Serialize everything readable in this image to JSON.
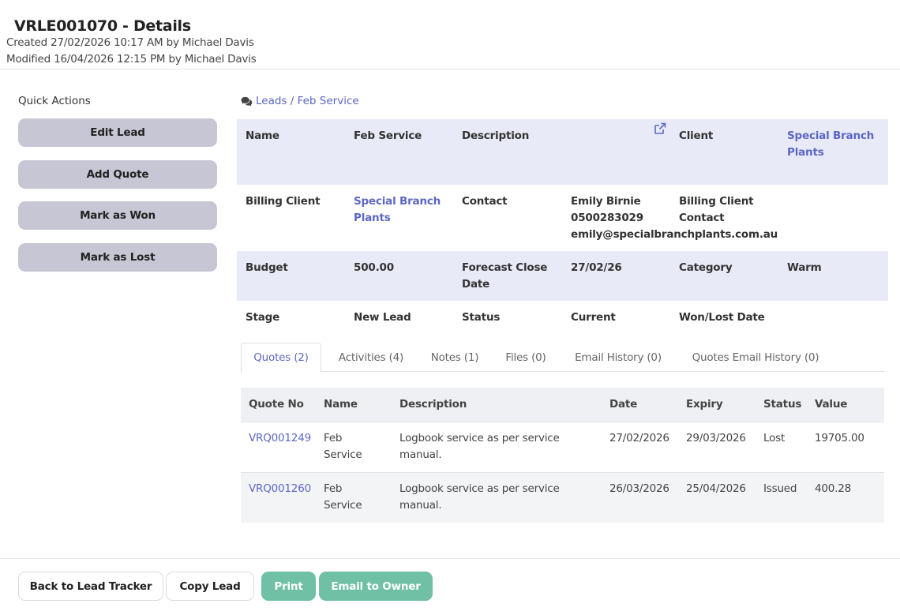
{
  "header": {
    "title": "VRLE001070 - Details",
    "created": "Created 27/02/2026 10:17 AM by Michael Davis",
    "modified": "Modified 16/04/2026 12:15 PM by Michael Davis"
  },
  "quick_actions": {
    "title": "Quick Actions",
    "buttons": [
      "Edit Lead",
      "Add Quote",
      "Mark as Won",
      "Mark as Lost"
    ]
  },
  "breadcrumb": {
    "icon": "comments-icon",
    "text": "Leads / Feb Service"
  },
  "details": {
    "name_label": "Name",
    "name_value": "Feb Service",
    "description_label": "Description",
    "client_label": "Client",
    "client_value": "Special Branch Plants",
    "billing_client_label": "Billing Client",
    "billing_client_value": "Special Branch Plants",
    "contact_label": "Contact",
    "contact_name": "Emily Birnie",
    "contact_phone": "0500283029",
    "contact_email": "emily@specialbranchplants.com.au",
    "billing_contact_label": "Billing Client Contact",
    "budget_label": "Budget",
    "budget_value": "500.00",
    "forecast_label": "Forecast Close Date",
    "forecast_value": "27/02/26",
    "category_label": "Category",
    "category_value": "Warm",
    "stage_label": "Stage",
    "stage_value": "New Lead",
    "status_label": "Status",
    "status_value": "Current",
    "wonlost_label": "Won/Lost Date"
  },
  "tabs": [
    "Quotes (2)",
    "Activities (4)",
    "Notes (1)",
    "Files (0)",
    "Email History (0)",
    "Quotes Email History (0)"
  ],
  "quotes": {
    "headers": [
      "Quote No",
      "Name",
      "Description",
      "Date",
      "Expiry",
      "Status",
      "Value"
    ],
    "rows": [
      {
        "quote_no": "VRQ001249",
        "name": "Feb Service",
        "description": "Logbook service as per service manual.",
        "date": "27/02/2026",
        "expiry": "29/03/2026",
        "status": "Lost",
        "value": "19705.00"
      },
      {
        "quote_no": "VRQ001260",
        "name": "Feb Service",
        "description": "Logbook service as per service manual.",
        "date": "26/03/2026",
        "expiry": "25/04/2026",
        "status": "Issued",
        "value": "400.28"
      }
    ]
  },
  "footer": {
    "back": "Back to Lead Tracker",
    "copy": "Copy Lead",
    "print": "Print",
    "email": "Email to Owner"
  },
  "colors": {
    "accent": "#5c67c4",
    "shade_row": "#e8eaf7",
    "quick_button": "#c6c6d4",
    "green_button": "#6fc0a5"
  }
}
